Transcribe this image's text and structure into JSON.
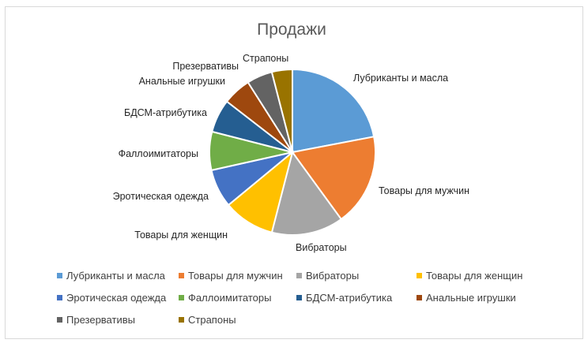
{
  "chart_data": {
    "type": "pie",
    "title": "Продажи",
    "legend_position": "bottom",
    "start_angle_deg": 0,
    "categories": [
      "Лубриканты и масла",
      "Товары для мужчин",
      "Вибраторы",
      "Товары для женщин",
      "Эротическая одежда",
      "Фаллоимитаторы",
      "БДСМ-атрибутика",
      "Анальные игрушки",
      "Презервативы",
      "Страпоны"
    ],
    "values": [
      22,
      18,
      14,
      10,
      7.5,
      7.5,
      6.5,
      5.5,
      5,
      4
    ],
    "colors": [
      "#5b9bd5",
      "#ed7d31",
      "#a5a5a5",
      "#ffc000",
      "#4472c4",
      "#70ad47",
      "#255e91",
      "#9e480e",
      "#636363",
      "#997300"
    ]
  }
}
